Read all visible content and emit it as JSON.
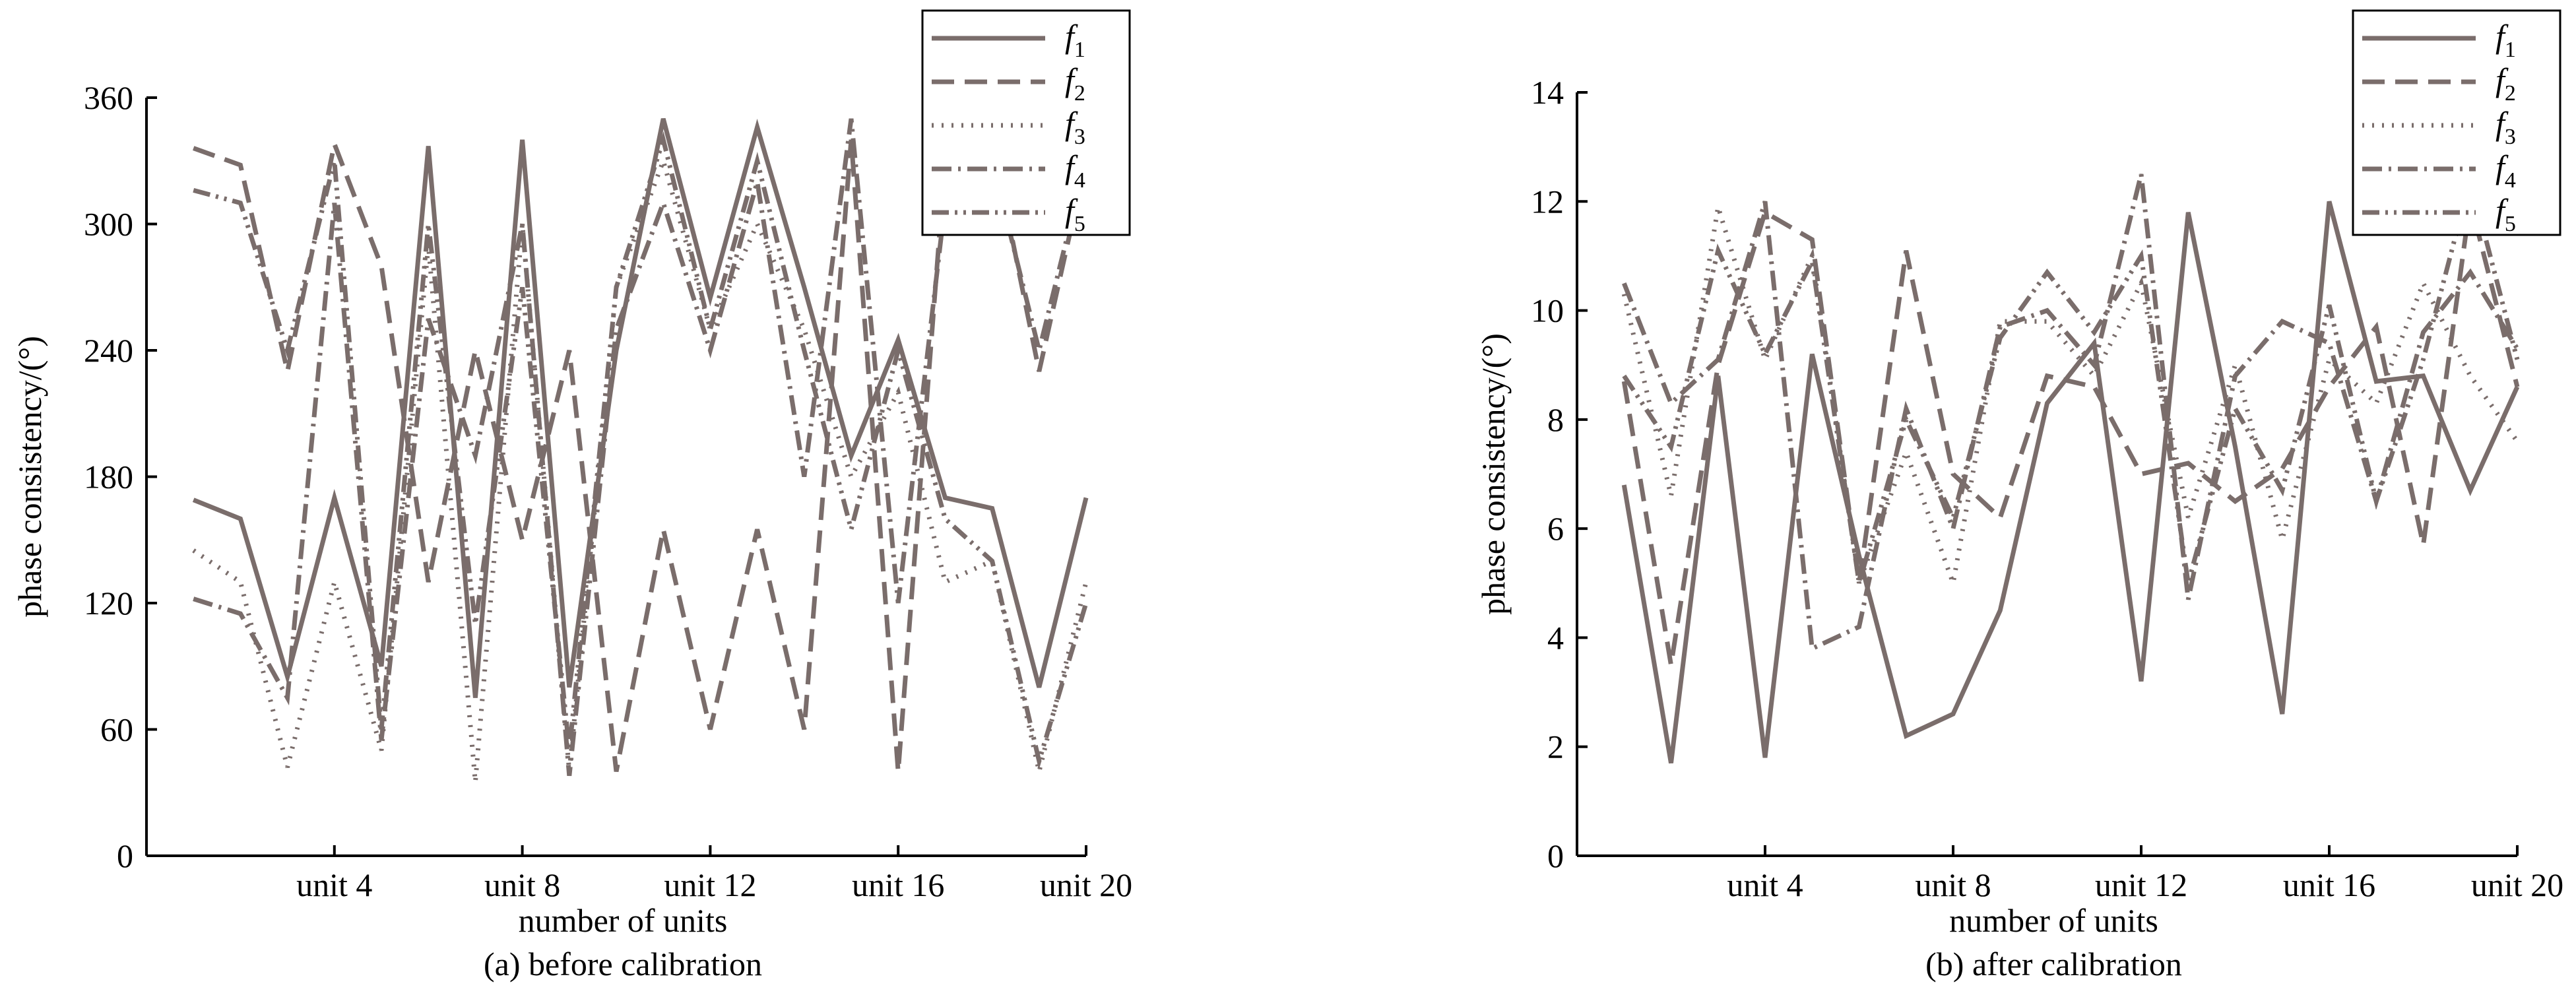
{
  "chart_data": [
    {
      "type": "line",
      "caption": "(a) before calibration",
      "xlabel": "number of units",
      "ylabel": "phase consistency/(°)",
      "x": [
        1,
        2,
        3,
        4,
        5,
        6,
        7,
        8,
        9,
        10,
        11,
        12,
        13,
        14,
        15,
        16,
        17,
        18,
        19,
        20
      ],
      "x_ticks": [
        4,
        8,
        12,
        16,
        20
      ],
      "x_tick_labels": [
        "unit 4",
        "unit 8",
        "unit 12",
        "unit 16",
        "unit 20"
      ],
      "xlim": [
        0,
        20
      ],
      "ylim": [
        0,
        360
      ],
      "y_ticks": [
        0,
        60,
        120,
        180,
        240,
        300,
        360
      ],
      "y_tick_labels": [
        "0",
        "60",
        "120",
        "180",
        "240",
        "300",
        "360"
      ],
      "grid": false,
      "legend_position": "top-right",
      "color": "#7a6d6b",
      "series": [
        {
          "name": "f",
          "sub": "1",
          "dash": "solid",
          "values": [
            169,
            160,
            85,
            170,
            90,
            337,
            75,
            340,
            80,
            240,
            350,
            265,
            346,
            270,
            190,
            245,
            170,
            165,
            80,
            170
          ]
        },
        {
          "name": "f",
          "sub": "2",
          "dash": "dash",
          "values": [
            336,
            328,
            230,
            338,
            280,
            130,
            240,
            150,
            240,
            40,
            155,
            60,
            155,
            60,
            340,
            40,
            330,
            340,
            230,
            330
          ]
        },
        {
          "name": "f",
          "sub": "3",
          "dash": "dot",
          "values": [
            145,
            130,
            42,
            130,
            50,
            290,
            35,
            300,
            40,
            270,
            330,
            250,
            300,
            250,
            180,
            220,
            130,
            140,
            40,
            130
          ]
        },
        {
          "name": "f",
          "sub": "4",
          "dash": "dashdot",
          "values": [
            122,
            115,
            75,
            310,
            55,
            255,
            190,
            300,
            38,
            250,
            310,
            240,
            320,
            180,
            350,
            120,
            310,
            330,
            240,
            330
          ]
        },
        {
          "name": "f",
          "sub": "5",
          "dash": "dashdotdot",
          "values": [
            316,
            310,
            240,
            330,
            60,
            300,
            110,
            270,
            50,
            270,
            340,
            250,
            330,
            240,
            155,
            240,
            160,
            140,
            45,
            120
          ]
        }
      ]
    },
    {
      "type": "line",
      "caption": "(b) after calibration",
      "xlabel": "number of units",
      "ylabel": "phase consistency/(°)",
      "x": [
        1,
        2,
        3,
        4,
        5,
        6,
        7,
        8,
        9,
        10,
        11,
        12,
        13,
        14,
        15,
        16,
        17,
        18,
        19,
        20
      ],
      "x_ticks": [
        4,
        8,
        12,
        16,
        20
      ],
      "x_tick_labels": [
        "unit 4",
        "unit 8",
        "unit 12",
        "unit 16",
        "unit 20"
      ],
      "xlim": [
        0,
        20
      ],
      "ylim": [
        0,
        14
      ],
      "y_ticks": [
        0,
        2,
        4,
        6,
        8,
        10,
        12,
        14
      ],
      "y_tick_labels": [
        "0",
        "2",
        "4",
        "6",
        "8",
        "10",
        "12",
        "14"
      ],
      "grid": false,
      "legend_position": "top-right",
      "color": "#7a6d6b",
      "series": [
        {
          "name": "f",
          "sub": "1",
          "dash": "solid",
          "values": [
            6.8,
            1.7,
            8.8,
            1.8,
            9.2,
            5.5,
            2.2,
            2.6,
            4.5,
            8.3,
            9.4,
            3.2,
            11.8,
            7.5,
            2.6,
            12.0,
            8.7,
            8.8,
            6.7,
            8.6
          ]
        },
        {
          "name": "f",
          "sub": "2",
          "dash": "dash",
          "values": [
            8.7,
            3.5,
            9.0,
            11.8,
            11.3,
            5.0,
            11.1,
            7.0,
            6.2,
            8.8,
            8.6,
            7.0,
            7.2,
            6.5,
            7.1,
            8.6,
            9.7,
            5.7,
            12.0,
            8.6
          ]
        },
        {
          "name": "f",
          "sub": "3",
          "dash": "dot",
          "values": [
            10.3,
            6.6,
            11.9,
            9.1,
            11.0,
            5.0,
            7.4,
            5.0,
            9.8,
            9.8,
            8.8,
            10.5,
            6.2,
            9.0,
            5.8,
            9.1,
            8.3,
            10.5,
            8.8,
            7.6
          ]
        },
        {
          "name": "f",
          "sub": "4",
          "dash": "dashdot",
          "values": [
            10.5,
            8.3,
            9.1,
            12.0,
            3.8,
            4.2,
            8.2,
            6.0,
            9.7,
            10.0,
            9.0,
            12.5,
            4.7,
            8.8,
            9.8,
            9.4,
            6.5,
            9.6,
            10.7,
            9.3
          ]
        },
        {
          "name": "f",
          "sub": "5",
          "dash": "dashdotdot",
          "values": [
            8.8,
            7.5,
            11.1,
            9.2,
            10.9,
            5.0,
            8.0,
            6.2,
            9.5,
            10.7,
            9.6,
            11.0,
            5.0,
            8.2,
            6.7,
            10.1,
            6.5,
            9.1,
            12.4,
            9.1
          ]
        }
      ]
    }
  ]
}
